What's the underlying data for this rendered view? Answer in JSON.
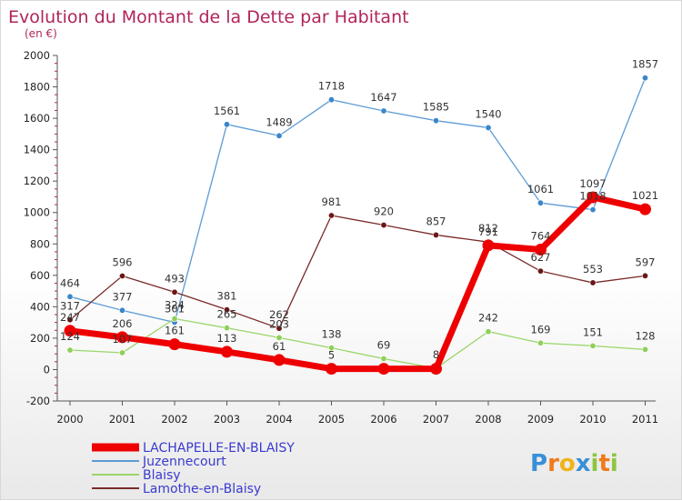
{
  "chart_data": {
    "type": "line",
    "title": "Evolution du Montant de la Dette par Habitant",
    "subtitle": "(en €)",
    "x": [
      "2000",
      "2001",
      "2002",
      "2003",
      "2004",
      "2005",
      "2006",
      "2007",
      "2008",
      "2009",
      "2010",
      "2011"
    ],
    "ylim": [
      -200,
      2000
    ],
    "yticks": [
      -200,
      0,
      200,
      400,
      600,
      800,
      1000,
      1200,
      1400,
      1600,
      1800,
      2000
    ],
    "grid": false,
    "legend_position": "bottom-left",
    "series": [
      {
        "name": "Juzennecourt",
        "color": "#5b9bd5",
        "marker": "#3b86c9",
        "width": 1.3,
        "values": [
          464,
          377,
          301,
          1561,
          1489,
          1718,
          1647,
          1585,
          1540,
          1061,
          1018,
          1857
        ],
        "labels": [
          "464",
          "377",
          "301",
          "1561",
          "1489",
          "1718",
          "1647",
          "1585",
          "1540",
          "1061",
          "1018",
          "1857"
        ]
      },
      {
        "name": "Blaisy",
        "color": "#9ad66a",
        "marker": "#8fd05a",
        "width": 1.3,
        "values": [
          124,
          107,
          324,
          265,
          203,
          138,
          69,
          8,
          242,
          169,
          151,
          128
        ],
        "labels": [
          "124",
          "107",
          "324",
          "265",
          "203",
          "138",
          "69",
          "8",
          "242",
          "169",
          "151",
          "128"
        ]
      },
      {
        "name": "Lamothe-en-Blaisy",
        "color": "#7a2a2a",
        "marker": "#6b1717",
        "width": 1.3,
        "values": [
          317,
          596,
          493,
          381,
          262,
          981,
          920,
          857,
          812,
          627,
          553,
          597
        ],
        "labels": [
          "317",
          "596",
          "493",
          "381",
          "262",
          "981",
          "920",
          "857",
          "812",
          "627",
          "553",
          "597"
        ]
      },
      {
        "name": "LACHAPELLE-EN-BLAISY",
        "color": "#ee0000",
        "marker": "#ee0000",
        "width": 7,
        "values": [
          247,
          206,
          161,
          113,
          61,
          5,
          5,
          5,
          791,
          764,
          1097,
          1021
        ],
        "labels": [
          "247",
          "206",
          "161",
          "113",
          "61",
          "5",
          "",
          "",
          "791",
          "764",
          "1097",
          "1021"
        ]
      }
    ]
  },
  "legend": [
    {
      "label": "LACHAPELLE-EN-BLAISY",
      "color": "#ee0000",
      "thick": true
    },
    {
      "label": "Juzennecourt",
      "color": "#5b9bd5",
      "thick": false
    },
    {
      "label": "Blaisy",
      "color": "#9ad66a",
      "thick": false
    },
    {
      "label": "Lamothe-en-Blaisy",
      "color": "#7a2a2a",
      "thick": false
    }
  ],
  "logo": {
    "text": "Proxiti",
    "letters": [
      {
        "ch": "P",
        "color": "#3a8fd8"
      },
      {
        "ch": "r",
        "color": "#f07a1a"
      },
      {
        "ch": "o",
        "color": "#f0b31a"
      },
      {
        "ch": "x",
        "color": "#3a8fd8"
      },
      {
        "ch": "i",
        "color": "#8cc63f"
      },
      {
        "ch": "t",
        "color": "#f07a1a"
      },
      {
        "ch": "i",
        "color": "#8cc63f"
      }
    ]
  }
}
